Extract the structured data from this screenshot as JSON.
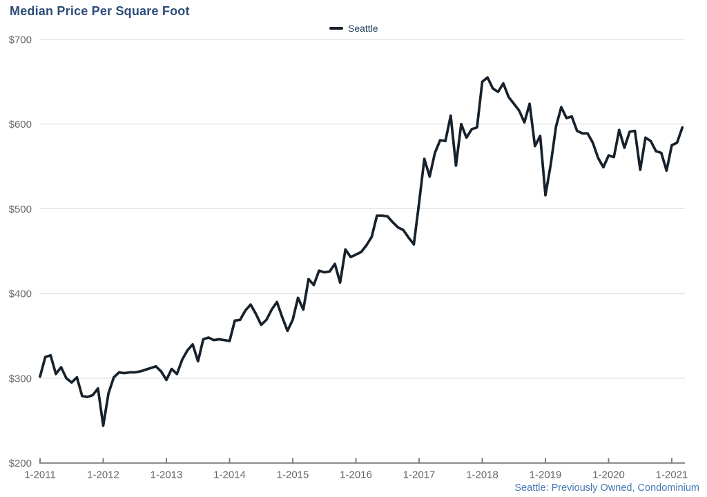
{
  "header": {
    "title": "Median Price Per Square Foot",
    "title_color": "#2d4c78"
  },
  "legend": {
    "label": "Seattle",
    "swatch_color": "#16212b",
    "text_color": "#1d3a5a"
  },
  "footnote": {
    "text": "Seattle: Previously Owned, Condominium",
    "color": "#4678b2"
  },
  "chart_data": {
    "type": "line",
    "title": "Median Price Per Square Foot",
    "grid": "horizontal",
    "legend_position": "top-center",
    "ylim": [
      200,
      700
    ],
    "grid_color": "#d9d9d9",
    "axis_color": "#7d7d7d",
    "tick_label_color": "#666666",
    "y_ticks": [
      {
        "value": 700,
        "label": "$700"
      },
      {
        "value": 600,
        "label": "$600"
      },
      {
        "value": 500,
        "label": "$500"
      },
      {
        "value": 400,
        "label": "$400"
      },
      {
        "value": 300,
        "label": "$300"
      },
      {
        "value": 200,
        "label": "$200"
      }
    ],
    "x_tick_labels": [
      "1-2011",
      "1-2012",
      "1-2013",
      "1-2014",
      "1-2015",
      "1-2016",
      "1-2017",
      "1-2018",
      "1-2019",
      "1-2020",
      "1-2021"
    ],
    "x_unit": "month",
    "series": [
      {
        "name": "Seattle",
        "color": "#16212b",
        "start": "2011-01",
        "end": "2021-03",
        "values": [
          302,
          325,
          327,
          305,
          313,
          300,
          295,
          301,
          279,
          278,
          280,
          288,
          244,
          282,
          301,
          307,
          306,
          307,
          307,
          308,
          310,
          312,
          314,
          308,
          298,
          311,
          305,
          322,
          333,
          340,
          320,
          346,
          348,
          345,
          346,
          345,
          344,
          368,
          369,
          380,
          387,
          376,
          363,
          369,
          381,
          390,
          372,
          356,
          369,
          395,
          381,
          417,
          410,
          427,
          425,
          426,
          435,
          413,
          452,
          443,
          446,
          449,
          457,
          467,
          492,
          492,
          491,
          484,
          478,
          475,
          466,
          458,
          507,
          559,
          538,
          566,
          581,
          580,
          610,
          551,
          600,
          584,
          594,
          596,
          650,
          655,
          642,
          638,
          648,
          632,
          624,
          616,
          602,
          624,
          574,
          586,
          516,
          552,
          597,
          620,
          607,
          609,
          592,
          589,
          589,
          578,
          560,
          549,
          563,
          561,
          593,
          572,
          591,
          592,
          546,
          584,
          580,
          568,
          566,
          545,
          575,
          578,
          596
        ]
      }
    ]
  }
}
